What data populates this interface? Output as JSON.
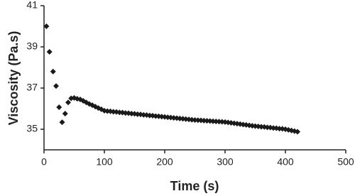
{
  "chart_data": {
    "type": "scatter",
    "x_label": "Time (s)",
    "y_label": "Viscosity (Pa.s)",
    "color": "#1a1a1a",
    "x": [
      4,
      9,
      15,
      20,
      25,
      30,
      35,
      40,
      45,
      50,
      55,
      60,
      65,
      70,
      75,
      80,
      85,
      90,
      95,
      100,
      105,
      110,
      115,
      120,
      125,
      130,
      135,
      140,
      145,
      150,
      155,
      160,
      165,
      170,
      175,
      180,
      185,
      190,
      195,
      200,
      205,
      210,
      215,
      220,
      225,
      230,
      235,
      240,
      245,
      250,
      255,
      260,
      265,
      270,
      275,
      280,
      285,
      290,
      295,
      300,
      305,
      310,
      315,
      320,
      325,
      330,
      335,
      340,
      345,
      350,
      355,
      360,
      365,
      370,
      375,
      380,
      385,
      390,
      395,
      400,
      405,
      410,
      415,
      420
    ],
    "values": [
      40.0,
      38.76,
      37.8,
      37.1,
      36.07,
      35.34,
      35.76,
      36.3,
      36.5,
      36.52,
      36.48,
      36.45,
      36.38,
      36.3,
      36.23,
      36.17,
      36.1,
      36.03,
      35.97,
      35.9,
      35.88,
      35.87,
      35.85,
      35.84,
      35.82,
      35.81,
      35.79,
      35.78,
      35.76,
      35.75,
      35.73,
      35.72,
      35.7,
      35.69,
      35.67,
      35.66,
      35.64,
      35.63,
      35.61,
      35.6,
      35.58,
      35.57,
      35.55,
      35.54,
      35.52,
      35.51,
      35.49,
      35.48,
      35.46,
      35.45,
      35.44,
      35.43,
      35.42,
      35.41,
      35.4,
      35.39,
      35.38,
      35.37,
      35.36,
      35.35,
      35.33,
      35.31,
      35.29,
      35.27,
      35.25,
      35.23,
      35.21,
      35.19,
      35.17,
      35.15,
      35.14,
      35.12,
      35.11,
      35.09,
      35.08,
      35.06,
      35.05,
      35.03,
      35.02,
      35.0,
      34.97,
      34.94,
      34.91,
      34.88
    ],
    "xlim": [
      0,
      500
    ],
    "xticks": [
      0,
      100,
      200,
      300,
      400,
      500
    ],
    "ylim": [
      34,
      41
    ],
    "yticks": [
      35,
      37,
      39,
      41
    ]
  }
}
